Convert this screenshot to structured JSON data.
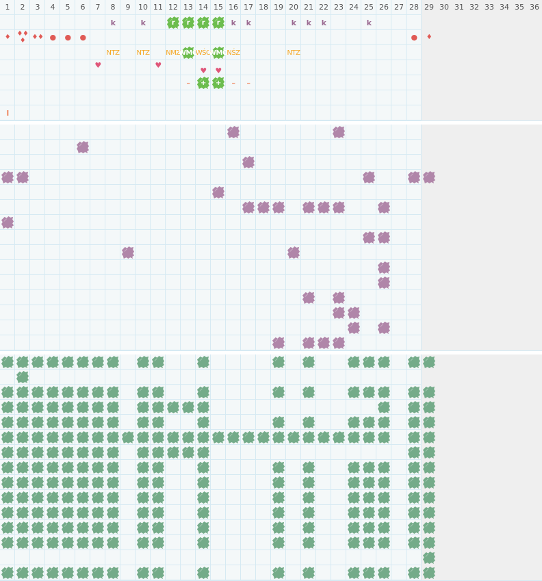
{
  "colors": {
    "grid_line": "#d6eaf3",
    "background": "#f4f8f9",
    "inactive_days": "#efefef",
    "purple_blob": "#b086a9",
    "top_green_blob": "#6cbd4e",
    "bottom_green_blob": "#74ab89",
    "k_mark": "#9b6a91",
    "orange_label": "#f5a623",
    "drop": "#e05a55",
    "heart": "#e0577a",
    "dash": "#ef8d68"
  },
  "header": {
    "days": [
      1,
      2,
      3,
      4,
      5,
      6,
      7,
      8,
      9,
      10,
      11,
      12,
      13,
      14,
      15,
      16,
      17,
      18,
      19,
      20,
      21,
      22,
      23,
      24,
      25,
      26,
      27,
      28,
      29,
      30,
      31,
      32,
      33,
      34,
      35,
      36
    ],
    "last_active_day": 28
  },
  "top": {
    "rows": [
      [
        {
          "day": 8,
          "mark": "letter",
          "label": "k"
        },
        {
          "day": 10,
          "mark": "letter",
          "label": "k"
        },
        {
          "day": 12,
          "mark": "green-blob",
          "label": "r"
        },
        {
          "day": 13,
          "mark": "green-blob",
          "label": "r"
        },
        {
          "day": 14,
          "mark": "green-blob",
          "label": "r"
        },
        {
          "day": 15,
          "mark": "green-blob",
          "label": "r"
        },
        {
          "day": 16,
          "mark": "letter",
          "label": "k"
        },
        {
          "day": 17,
          "mark": "letter",
          "label": "k"
        },
        {
          "day": 20,
          "mark": "letter",
          "label": "k"
        },
        {
          "day": 21,
          "mark": "letter",
          "label": "k"
        },
        {
          "day": 22,
          "mark": "letter",
          "label": "k"
        },
        {
          "day": 25,
          "mark": "letter",
          "label": "k"
        }
      ],
      [
        {
          "day": 1,
          "mark": "drop",
          "label": "1"
        },
        {
          "day": 2,
          "mark": "drop",
          "label": "3"
        },
        {
          "day": 3,
          "mark": "drop",
          "label": "2"
        },
        {
          "day": 4,
          "mark": "dot",
          "label": ""
        },
        {
          "day": 5,
          "mark": "dot",
          "label": ""
        },
        {
          "day": 6,
          "mark": "dot",
          "label": ""
        },
        {
          "day": 28,
          "mark": "dot",
          "label": ""
        },
        {
          "day": 29,
          "mark": "drop",
          "label": "1"
        }
      ],
      [
        {
          "day": 8,
          "mark": "orange-text",
          "label": "NTZ"
        },
        {
          "day": 10,
          "mark": "orange-text",
          "label": "NTZ"
        },
        {
          "day": 12,
          "mark": "orange-text",
          "label": "NMZ"
        },
        {
          "day": 13,
          "mark": "green-blob",
          "label": "WMÓ"
        },
        {
          "day": 14,
          "mark": "orange-text",
          "label": "WŚO"
        },
        {
          "day": 15,
          "mark": "green-blob",
          "label": "WMÓ"
        },
        {
          "day": 16,
          "mark": "orange-text",
          "label": "NŚZ"
        },
        {
          "day": 20,
          "mark": "orange-text",
          "label": "NTZ"
        }
      ],
      [
        {
          "day": 7,
          "mark": "heart-high",
          "label": ""
        },
        {
          "day": 11,
          "mark": "heart-high",
          "label": ""
        },
        {
          "day": 14,
          "mark": "heart-low",
          "label": ""
        },
        {
          "day": 15,
          "mark": "heart-low",
          "label": ""
        }
      ],
      [
        {
          "day": 13,
          "mark": "dash",
          "label": "–"
        },
        {
          "day": 14,
          "mark": "green-blob",
          "label": "+"
        },
        {
          "day": 15,
          "mark": "green-blob",
          "label": "+"
        },
        {
          "day": 16,
          "mark": "dash",
          "label": "–"
        },
        {
          "day": 17,
          "mark": "dash",
          "label": "–"
        }
      ],
      [],
      [
        {
          "day": 1,
          "mark": "bar",
          "label": "I"
        }
      ]
    ]
  },
  "middle": {
    "rows": [
      [
        16,
        23
      ],
      [
        6
      ],
      [
        17
      ],
      [
        1,
        2,
        25,
        28,
        29
      ],
      [
        15
      ],
      [
        17,
        18,
        19,
        21,
        22,
        23,
        26
      ],
      [
        1
      ],
      [
        25,
        26
      ],
      [
        9,
        20
      ],
      [
        26
      ],
      [
        26
      ],
      [
        21,
        23
      ],
      [
        23,
        24
      ],
      [
        24,
        26
      ],
      [
        19,
        21,
        22,
        23
      ]
    ]
  },
  "bottom": {
    "rows": [
      [
        1,
        2,
        3,
        4,
        5,
        6,
        7,
        8,
        10,
        11,
        14,
        19,
        21,
        24,
        25,
        26,
        28,
        29
      ],
      [
        2
      ],
      [
        1,
        2,
        3,
        4,
        5,
        6,
        7,
        8,
        10,
        11,
        14,
        19,
        21,
        24,
        25,
        26,
        28,
        29
      ],
      [
        1,
        2,
        3,
        4,
        5,
        6,
        7,
        8,
        10,
        11,
        12,
        13,
        14,
        26,
        28,
        29
      ],
      [
        1,
        2,
        3,
        4,
        5,
        6,
        7,
        8,
        10,
        11,
        14,
        19,
        21,
        24,
        25,
        26,
        28,
        29
      ],
      [
        1,
        2,
        3,
        4,
        5,
        6,
        7,
        8,
        9,
        10,
        11,
        12,
        13,
        14,
        15,
        16,
        17,
        18,
        19,
        20,
        21,
        22,
        23,
        24,
        25,
        26,
        28,
        29
      ],
      [
        1,
        2,
        3,
        4,
        5,
        6,
        7,
        8,
        10,
        11,
        12,
        13,
        14,
        28,
        29
      ],
      [
        1,
        2,
        3,
        4,
        5,
        6,
        7,
        8,
        10,
        11,
        14,
        19,
        21,
        24,
        25,
        26,
        28,
        29
      ],
      [
        1,
        2,
        3,
        4,
        5,
        6,
        7,
        8,
        10,
        11,
        14,
        19,
        21,
        24,
        25,
        26,
        28,
        29
      ],
      [
        1,
        2,
        3,
        4,
        5,
        6,
        7,
        8,
        10,
        11,
        14,
        19,
        21,
        24,
        25,
        26,
        28,
        29
      ],
      [
        1,
        2,
        3,
        4,
        5,
        6,
        7,
        8,
        10,
        11,
        14,
        19,
        21,
        24,
        25,
        26,
        28,
        29
      ],
      [
        1,
        2,
        3,
        4,
        5,
        6,
        7,
        8,
        10,
        11,
        14,
        19,
        21,
        24,
        25,
        26,
        28,
        29
      ],
      [
        1,
        2,
        3,
        4,
        5,
        6,
        7,
        8,
        10,
        11,
        14,
        19,
        21,
        24,
        25,
        26,
        28,
        29
      ],
      [
        29
      ],
      [
        1,
        2,
        3,
        4,
        5,
        6,
        7,
        8,
        10,
        11,
        14,
        19,
        21,
        24,
        25,
        26,
        28,
        29
      ]
    ]
  }
}
